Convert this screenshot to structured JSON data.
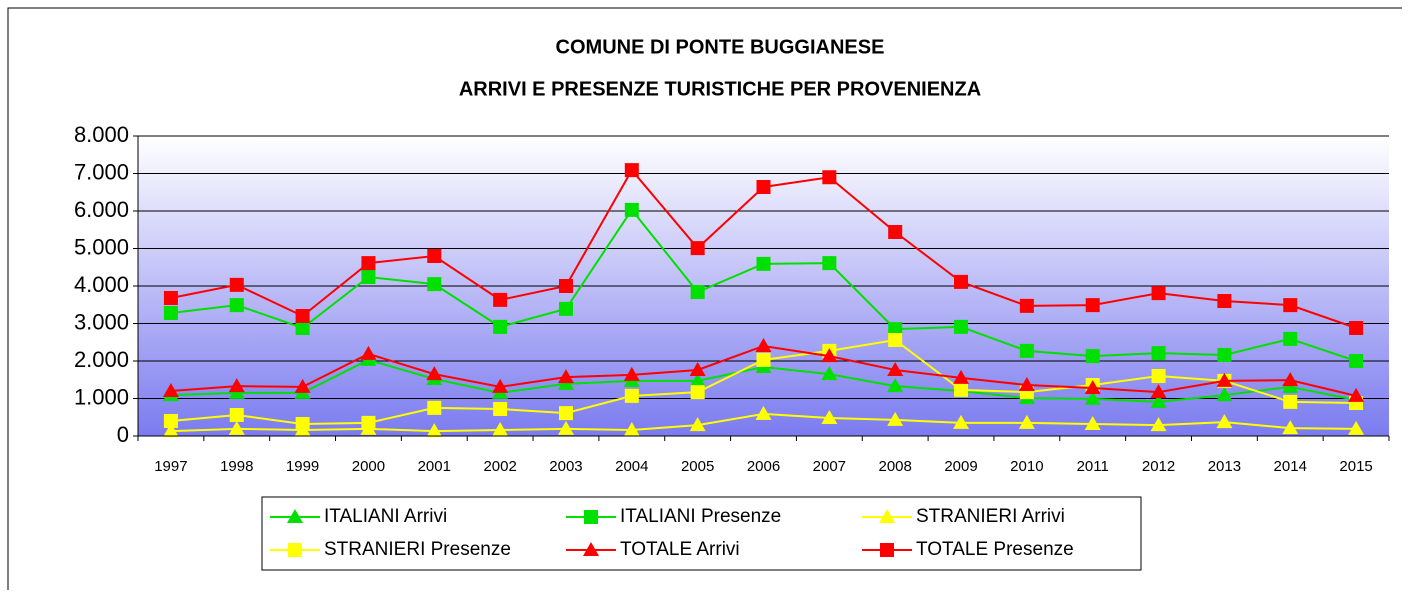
{
  "chart_data": {
    "type": "line",
    "title": [
      "COMUNE DI PONTE BUGGIANESE",
      "ARRIVI E PRESENZE TURISTICHE PER PROVENIENZA"
    ],
    "categories": [
      "1997",
      "1998",
      "1999",
      "2000",
      "2001",
      "2002",
      "2003",
      "2004",
      "2005",
      "2006",
      "2007",
      "2008",
      "2009",
      "2010",
      "2011",
      "2012",
      "2013",
      "2014",
      "2015"
    ],
    "series": [
      {
        "name": "ITALIANI Arrivi",
        "color": "#00e000",
        "marker": "triangle",
        "values": [
          1090,
          1150,
          1150,
          2030,
          1520,
          1150,
          1390,
          1470,
          1470,
          1840,
          1650,
          1330,
          1200,
          1010,
          990,
          910,
          1090,
          1310,
          960
        ]
      },
      {
        "name": "ITALIANI Presenze",
        "color": "#00e000",
        "marker": "square",
        "values": [
          3280,
          3490,
          2880,
          4240,
          4050,
          2910,
          3390,
          6030,
          3840,
          4590,
          4610,
          2850,
          2910,
          2270,
          2130,
          2210,
          2160,
          2590,
          2000
        ]
      },
      {
        "name": "STRANIERI Arrivi",
        "color": "#ffff00",
        "marker": "triangle",
        "values": [
          130,
          190,
          160,
          190,
          130,
          160,
          190,
          160,
          290,
          590,
          480,
          430,
          350,
          350,
          320,
          290,
          370,
          210,
          190
        ]
      },
      {
        "name": "STRANIERI Presenze",
        "color": "#ffff00",
        "marker": "square",
        "values": [
          400,
          560,
          320,
          350,
          750,
          720,
          610,
          1070,
          1170,
          2030,
          2270,
          2560,
          1230,
          1170,
          1360,
          1600,
          1470,
          910,
          880
        ]
      },
      {
        "name": "TOTALE Arrivi",
        "color": "#ff0000",
        "marker": "triangle",
        "values": [
          1200,
          1330,
          1310,
          2190,
          1650,
          1310,
          1570,
          1630,
          1760,
          2400,
          2130,
          1760,
          1550,
          1360,
          1280,
          1170,
          1470,
          1490,
          1070
        ]
      },
      {
        "name": "TOTALE Presenze",
        "color": "#ff0000",
        "marker": "square",
        "values": [
          3680,
          4030,
          3200,
          4610,
          4800,
          3630,
          4000,
          7090,
          5010,
          6640,
          6900,
          5440,
          4110,
          3470,
          3490,
          3810,
          3600,
          3490,
          2880
        ]
      }
    ],
    "ylim": [
      0,
      8000
    ],
    "yticks": [
      0,
      {
        "value": 1000,
        "label": "1.000"
      },
      {
        "value": 2000,
        "label": "2.000"
      },
      {
        "value": 3000,
        "label": "3.000"
      },
      {
        "value": 4000,
        "label": "4.000"
      },
      {
        "value": 5000,
        "label": "5.000"
      },
      {
        "value": 6000,
        "label": "6.000"
      },
      {
        "value": 7000,
        "label": "7.000"
      },
      {
        "value": 8000,
        "label": "8.000"
      }
    ],
    "grid": true,
    "legend": "bottom"
  }
}
